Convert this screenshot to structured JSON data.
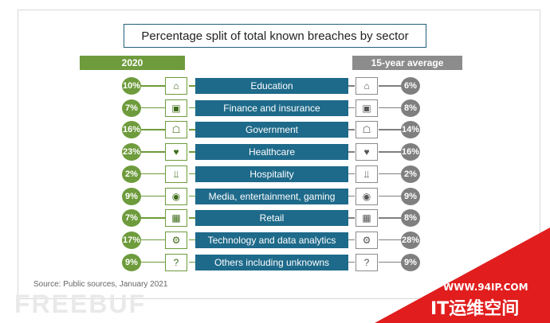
{
  "chart_data": {
    "type": "table",
    "title": "Percentage split of total known breaches by sector",
    "column_headers": {
      "left": "2020",
      "right": "15-year average"
    },
    "categories": [
      "Education",
      "Finance and insurance",
      "Government",
      "Healthcare",
      "Hospitality",
      "Media, entertainment, gaming",
      "Retail",
      "Technology and data analytics",
      "Others including unknowns"
    ],
    "series": [
      {
        "name": "2020",
        "values": [
          10,
          7,
          16,
          23,
          2,
          9,
          7,
          17,
          9
        ]
      },
      {
        "name": "15-year average",
        "values": [
          6,
          8,
          14,
          16,
          2,
          9,
          8,
          28,
          9
        ]
      }
    ],
    "icons": [
      "graduation-cap-icon",
      "cash-icon",
      "government-building-icon",
      "heart-pulse-icon",
      "bed-icon",
      "gamepad-icon",
      "shopping-cart-icon",
      "robot-icon",
      "question-mark-icon"
    ],
    "colors": {
      "left_accent": "#6e9b3c",
      "right_accent": "#7f7f7f",
      "label_bar": "#1e6a8a"
    }
  },
  "source": "Source: Public sources, January 2021",
  "watermarks": {
    "freebuf": "FREEBUF",
    "site_url": "WWW.94IP.COM",
    "site_name": "IT运维空间"
  }
}
